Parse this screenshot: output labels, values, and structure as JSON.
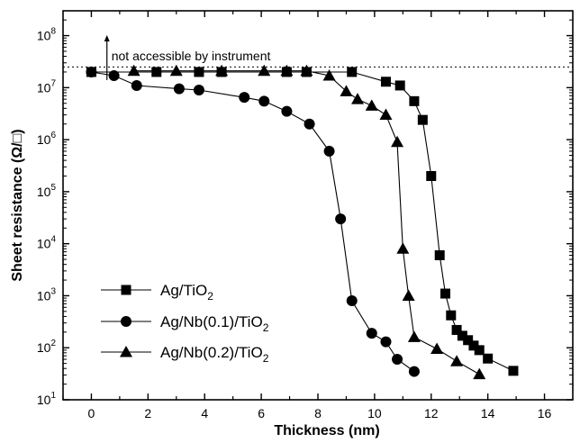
{
  "chart_data": {
    "type": "scatter",
    "title": "",
    "xlabel": "Thickness (nm)",
    "ylabel": "Sheet resistance (Ω/□)",
    "xlim": [
      -1,
      17
    ],
    "ylim": [
      10,
      300000000
    ],
    "yscale": "log",
    "x_ticks": [
      "0",
      "2",
      "4",
      "6",
      "8",
      "10",
      "12",
      "14",
      "16"
    ],
    "y_ticks": [
      {
        "base": "10",
        "exp": "1"
      },
      {
        "base": "10",
        "exp": "2"
      },
      {
        "base": "10",
        "exp": "3"
      },
      {
        "base": "10",
        "exp": "4"
      },
      {
        "base": "10",
        "exp": "5"
      },
      {
        "base": "10",
        "exp": "6"
      },
      {
        "base": "10",
        "exp": "7"
      },
      {
        "base": "10",
        "exp": "8"
      }
    ],
    "grid": false,
    "legend_position": "bottom-left",
    "annotation": {
      "text": "not accessible by instrument",
      "limit_value": 25000000
    },
    "series": [
      {
        "name": "Ag/TiO2",
        "label_main": "Ag/TiO",
        "label_sub": "2",
        "marker": "square",
        "x": [
          0,
          2.3,
          3.8,
          4.6,
          6.9,
          7.6,
          9.2,
          10.4,
          10.9,
          11.4,
          11.7,
          12.0,
          12.3,
          12.5,
          12.7,
          12.9,
          13.1,
          13.3,
          13.5,
          13.7,
          14.0,
          14.9
        ],
        "y": [
          20000000,
          20000000,
          20000000,
          20000000,
          20000000,
          20000000,
          20000000,
          13000000,
          11000000,
          5500000,
          2400000,
          200000,
          6000,
          1100,
          420,
          220,
          170,
          140,
          110,
          90,
          62,
          36
        ]
      },
      {
        "name": "Ag/Nb(0.1)/TiO2",
        "label_main": "Ag/Nb(0.1)/TiO",
        "label_sub": "2",
        "marker": "circle",
        "x": [
          0,
          0.8,
          1.6,
          3.1,
          3.8,
          5.4,
          6.1,
          6.9,
          7.7,
          8.4,
          8.8,
          9.2,
          9.9,
          10.4,
          10.8,
          11.4
        ],
        "y": [
          20000000,
          17000000,
          11000000,
          9500000,
          9000000,
          6500000,
          5500000,
          3500000,
          2000000,
          600000,
          30000,
          800,
          190,
          130,
          60,
          35
        ]
      },
      {
        "name": "Ag/Nb(0.2)/TiO2",
        "label_main": "Ag/Nb(0.2)/TiO",
        "label_sub": "2",
        "marker": "triangle",
        "x": [
          1.5,
          3.0,
          4.6,
          6.1,
          6.9,
          7.6,
          8.4,
          9.0,
          9.4,
          9.9,
          10.4,
          10.8,
          11.0,
          11.2,
          11.4,
          12.2,
          12.9,
          13.7
        ],
        "y": [
          21000000,
          21000000,
          21000000,
          21000000,
          21000000,
          21000000,
          17000000,
          8500000,
          6000000,
          4500000,
          3000000,
          900000,
          8000,
          1000,
          160,
          95,
          55,
          31
        ]
      }
    ]
  }
}
